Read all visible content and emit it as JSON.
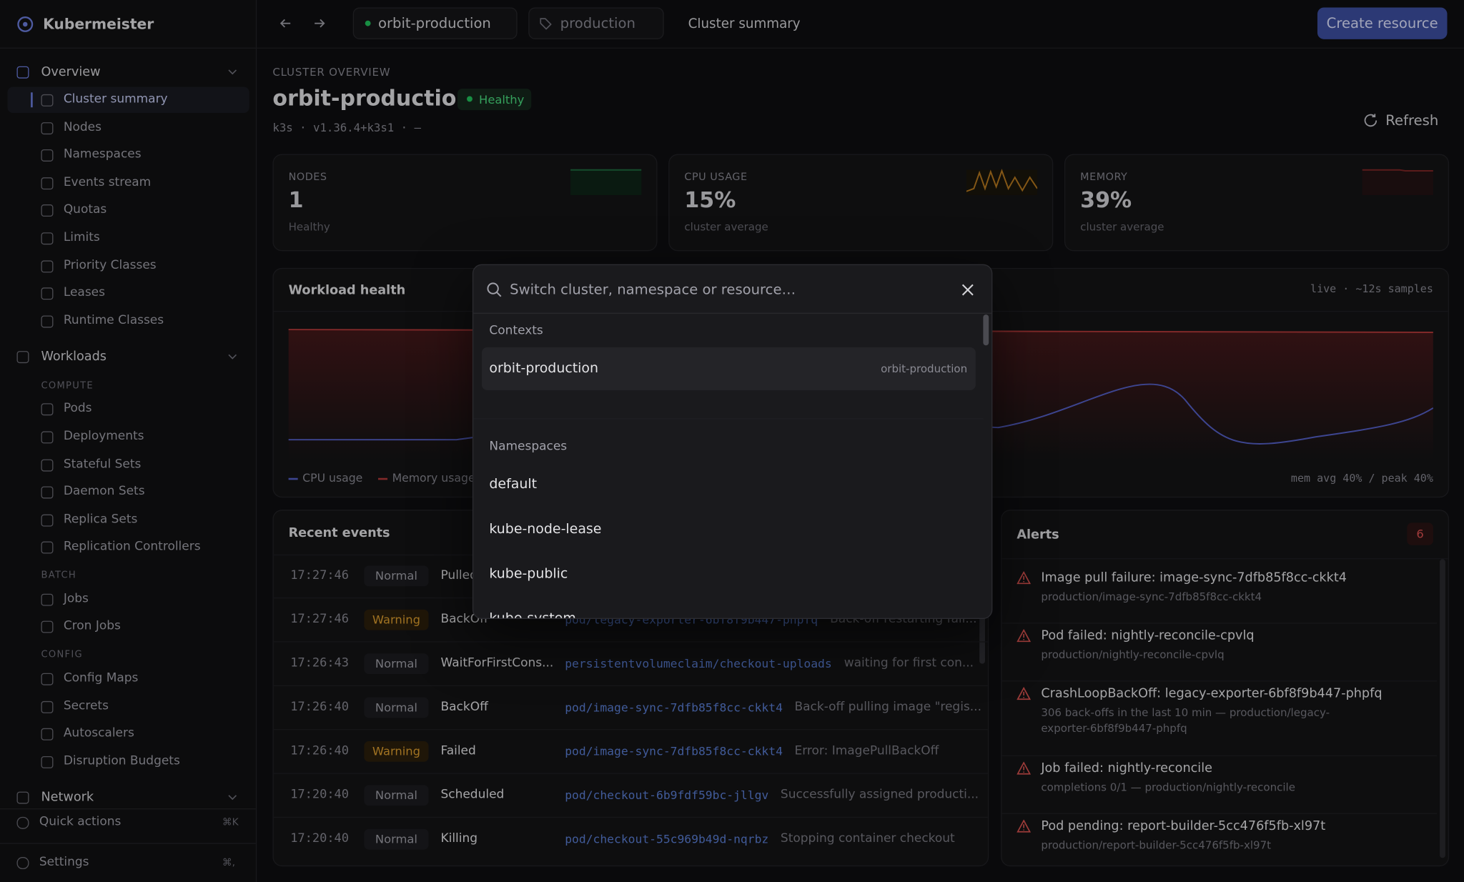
{
  "sidebar": {
    "brand": "Kubermeister",
    "groups": [
      {
        "title": "Overview",
        "sections": [
          {
            "items": [
              "Cluster summary",
              "Nodes",
              "Namespaces",
              "Events stream",
              "Quotas",
              "Limits",
              "Priority Classes",
              "Leases",
              "Runtime Classes"
            ]
          }
        ]
      },
      {
        "title": "Workloads",
        "sections": [
          {
            "label": "COMPUTE",
            "items": [
              "Pods",
              "Deployments",
              "Stateful Sets",
              "Daemon Sets",
              "Replica Sets",
              "Replication Controllers"
            ]
          },
          {
            "label": "BATCH",
            "items": [
              "Jobs",
              "Cron Jobs"
            ]
          },
          {
            "label": "CONFIG",
            "items": [
              "Config Maps",
              "Secrets",
              "Autoscalers",
              "Disruption Budgets"
            ]
          }
        ]
      },
      {
        "title": "Network",
        "sections": []
      }
    ],
    "footer": [
      {
        "label": "Quick actions",
        "shortcut": "⌘K"
      },
      {
        "label": "Settings",
        "shortcut": "⌘,"
      }
    ]
  },
  "topbar": {
    "context": "orbit-production",
    "namespace": "production",
    "crumb": "Cluster summary",
    "button": "Create resource"
  },
  "header": {
    "eyebrow": "CLUSTER OVERVIEW",
    "title": "orbit-production",
    "badge": "Healthy",
    "meta": "k3s · v1.36.4+k3s1 · —",
    "refresh": "Refresh"
  },
  "stats": [
    {
      "label": "NODES",
      "value": "1",
      "note": "Healthy"
    },
    {
      "label": "CPU USAGE",
      "value": "15%",
      "note": "cluster average"
    },
    {
      "label": "MEMORY",
      "value": "39%",
      "note": "cluster average"
    }
  ],
  "workload": {
    "title": "Workload health",
    "samples": "live · ~12s samples",
    "legend": [
      "CPU usage",
      "Memory usage"
    ],
    "summary": "mem avg 40% / peak 40%"
  },
  "events": {
    "title": "Recent events",
    "rows": [
      {
        "time": "17:27:46",
        "type": "Normal",
        "reason": "Pulled"
      },
      {
        "time": "17:27:46",
        "type": "Warning",
        "reason": "BackOff",
        "object": "pod/legacy-exporter-6bf8f9b447-phpfq",
        "message": "Back-off restarting fail..."
      },
      {
        "time": "17:26:43",
        "type": "Normal",
        "reason": "WaitForFirstCons...",
        "object": "persistentvolumeclaim/checkout-uploads",
        "message": "waiting for first con..."
      },
      {
        "time": "17:26:40",
        "type": "Normal",
        "reason": "BackOff",
        "object": "pod/image-sync-7dfb85f8cc-ckkt4",
        "message": "Back-off pulling image \"regis..."
      },
      {
        "time": "17:26:40",
        "type": "Warning",
        "reason": "Failed",
        "object": "pod/image-sync-7dfb85f8cc-ckkt4",
        "message": "Error: ImagePullBackOff"
      },
      {
        "time": "17:20:40",
        "type": "Normal",
        "reason": "Scheduled",
        "object": "pod/checkout-6b9fdf59bc-jllgv",
        "message": "Successfully assigned producti..."
      },
      {
        "time": "17:20:40",
        "type": "Normal",
        "reason": "Killing",
        "object": "pod/checkout-55c969b49d-nqrbz",
        "message": "Stopping container checkout"
      }
    ]
  },
  "alerts": {
    "title": "Alerts",
    "count": "6",
    "items": [
      {
        "title": "Image pull failure: image-sync-7dfb85f8cc-ckkt4",
        "detail": "production/image-sync-7dfb85f8cc-ckkt4"
      },
      {
        "title": "Pod failed: nightly-reconcile-cpvlq",
        "detail": "production/nightly-reconcile-cpvlq"
      },
      {
        "title": "CrashLoopBackOff: legacy-exporter-6bf8f9b447-phpfq",
        "detail": "306 back-offs in the last 10 min — production/legacy-exporter-6bf8f9b447-phpfq"
      },
      {
        "title": "Job failed: nightly-reconcile",
        "detail": "completions 0/1 — production/nightly-reconcile"
      },
      {
        "title": "Pod pending: report-builder-5cc476f5fb-xl97t",
        "detail": "production/report-builder-5cc476f5fb-xl97t"
      }
    ]
  },
  "palette": {
    "placeholder": "Switch cluster, namespace or resource…",
    "groups": [
      {
        "label": "Contexts",
        "options": [
          {
            "label": "orbit-production",
            "hint": "orbit-production"
          }
        ]
      },
      {
        "label": "Namespaces",
        "options": [
          {
            "label": "default"
          },
          {
            "label": "kube-node-lease"
          },
          {
            "label": "kube-public"
          },
          {
            "label": "kube-system"
          }
        ]
      }
    ]
  }
}
